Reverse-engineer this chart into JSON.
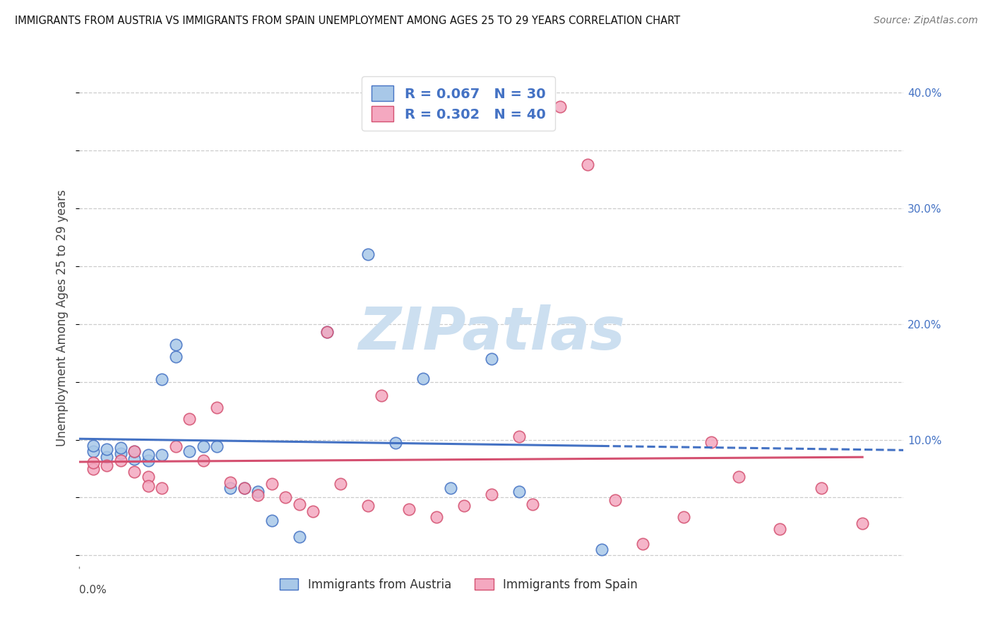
{
  "title": "IMMIGRANTS FROM AUSTRIA VS IMMIGRANTS FROM SPAIN UNEMPLOYMENT AMONG AGES 25 TO 29 YEARS CORRELATION CHART",
  "source": "Source: ZipAtlas.com",
  "ylabel": "Unemployment Among Ages 25 to 29 years",
  "xlim": [
    0.0,
    0.06
  ],
  "ylim": [
    -0.01,
    0.42
  ],
  "right_yticks": [
    0.0,
    0.1,
    0.2,
    0.3,
    0.4
  ],
  "right_yticklabels": [
    "",
    "10.0%",
    "20.0%",
    "30.0%",
    "40.0%"
  ],
  "austria_R": 0.067,
  "austria_N": 30,
  "spain_R": 0.302,
  "spain_N": 40,
  "austria_face_color": "#a8c8e8",
  "austria_edge_color": "#4472c4",
  "spain_face_color": "#f4a8c0",
  "spain_edge_color": "#d45070",
  "austria_line_color": "#4472c4",
  "spain_line_color": "#d45070",
  "right_tick_color": "#4472c4",
  "austria_scatter_x": [
    0.001,
    0.001,
    0.002,
    0.002,
    0.003,
    0.003,
    0.004,
    0.004,
    0.005,
    0.005,
    0.006,
    0.006,
    0.007,
    0.007,
    0.008,
    0.009,
    0.01,
    0.011,
    0.012,
    0.013,
    0.014,
    0.016,
    0.018,
    0.021,
    0.023,
    0.025,
    0.027,
    0.03,
    0.032,
    0.038
  ],
  "austria_scatter_y": [
    0.09,
    0.095,
    0.085,
    0.092,
    0.088,
    0.093,
    0.083,
    0.09,
    0.082,
    0.087,
    0.152,
    0.087,
    0.172,
    0.182,
    0.09,
    0.094,
    0.094,
    0.058,
    0.058,
    0.055,
    0.03,
    0.016,
    0.193,
    0.26,
    0.097,
    0.153,
    0.058,
    0.17,
    0.055,
    0.005
  ],
  "spain_scatter_x": [
    0.001,
    0.001,
    0.002,
    0.003,
    0.004,
    0.004,
    0.005,
    0.005,
    0.006,
    0.007,
    0.008,
    0.009,
    0.01,
    0.011,
    0.012,
    0.013,
    0.014,
    0.015,
    0.016,
    0.017,
    0.018,
    0.019,
    0.021,
    0.022,
    0.024,
    0.026,
    0.028,
    0.03,
    0.032,
    0.033,
    0.035,
    0.037,
    0.039,
    0.041,
    0.044,
    0.046,
    0.048,
    0.051,
    0.054,
    0.057
  ],
  "spain_scatter_y": [
    0.075,
    0.08,
    0.078,
    0.082,
    0.072,
    0.09,
    0.068,
    0.06,
    0.058,
    0.094,
    0.118,
    0.082,
    0.128,
    0.063,
    0.058,
    0.052,
    0.062,
    0.05,
    0.044,
    0.038,
    0.193,
    0.062,
    0.043,
    0.138,
    0.04,
    0.033,
    0.043,
    0.053,
    0.103,
    0.044,
    0.388,
    0.338,
    0.048,
    0.01,
    0.033,
    0.098,
    0.068,
    0.023,
    0.058,
    0.028
  ],
  "watermark_text": "ZIPatlas",
  "watermark_color": "#ccdff0",
  "background_color": "#ffffff",
  "grid_color": "#cccccc",
  "grid_linestyle": "--"
}
